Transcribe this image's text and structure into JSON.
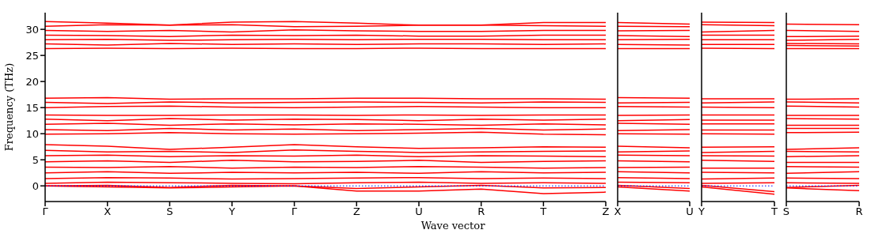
{
  "chart_data": [
    {
      "type": "line",
      "ylabel": "Frequency (THz)",
      "xlabel": "Wave vector",
      "categories": [
        "Γ",
        "X",
        "S",
        "Y",
        "Γ",
        "Z",
        "U",
        "R",
        "T",
        "Z"
      ],
      "ylim": [
        -3,
        33.2
      ],
      "yticks": [
        0,
        5,
        10,
        15,
        20,
        25,
        30
      ],
      "ref_lines": [
        {
          "axis": "y",
          "value": 0,
          "color": "#0000ff",
          "line_style": "dotted"
        }
      ],
      "series": [
        {
          "color": "#ff0000",
          "values": [
            31.5,
            31.2,
            30.8,
            31.4,
            31.5,
            31.2,
            30.8,
            30.8,
            31.3,
            31.3
          ]
        },
        {
          "color": "#ff0000",
          "values": [
            30.6,
            30.9,
            30.8,
            30.9,
            30.5,
            30.6,
            30.8,
            30.8,
            30.7,
            30.6
          ]
        },
        {
          "color": "#ff0000",
          "values": [
            29.8,
            29.6,
            29.8,
            29.5,
            29.9,
            29.7,
            29.6,
            29.6,
            29.8,
            29.8
          ]
        },
        {
          "color": "#ff0000",
          "values": [
            28.9,
            28.8,
            28.6,
            28.9,
            28.8,
            28.9,
            28.7,
            28.7,
            28.9,
            28.9
          ]
        },
        {
          "color": "#ff0000",
          "values": [
            28.0,
            28.1,
            27.9,
            28.0,
            28.1,
            28.0,
            28.1,
            28.1,
            28.0,
            28.0
          ]
        },
        {
          "color": "#ff0000",
          "values": [
            27.2,
            27.0,
            27.3,
            27.1,
            27.2,
            27.1,
            27.2,
            27.2,
            27.1,
            27.2
          ]
        },
        {
          "color": "#ff0000",
          "values": [
            26.3,
            26.4,
            26.3,
            26.4,
            26.3,
            26.3,
            26.4,
            26.3,
            26.3,
            26.3
          ]
        },
        {
          "color": "#ff0000",
          "values": [
            16.8,
            16.9,
            16.6,
            16.7,
            16.7,
            16.8,
            16.8,
            16.7,
            16.7,
            16.6
          ]
        },
        {
          "color": "#ff0000",
          "values": [
            16.0,
            15.8,
            16.1,
            15.9,
            16.0,
            16.1,
            16.0,
            15.9,
            16.1,
            16.0
          ]
        },
        {
          "color": "#ff0000",
          "values": [
            15.0,
            15.2,
            15.3,
            15.1,
            15.0,
            15.1,
            15.2,
            15.1,
            15.0,
            15.0
          ]
        },
        {
          "color": "#ff0000",
          "values": [
            13.6,
            13.5,
            13.5,
            13.6,
            13.6,
            13.5,
            13.6,
            13.5,
            13.6,
            13.6
          ]
        },
        {
          "color": "#ff0000",
          "values": [
            12.8,
            12.5,
            12.9,
            12.6,
            12.8,
            12.7,
            12.5,
            12.8,
            12.6,
            12.8
          ]
        },
        {
          "color": "#ff0000",
          "values": [
            11.8,
            12.0,
            11.6,
            11.9,
            11.7,
            11.9,
            11.8,
            11.6,
            11.9,
            11.7
          ]
        },
        {
          "color": "#ff0000",
          "values": [
            10.8,
            10.6,
            11.0,
            10.7,
            10.9,
            10.6,
            10.8,
            11.0,
            10.7,
            10.9
          ]
        },
        {
          "color": "#ff0000",
          "values": [
            9.9,
            10.0,
            10.2,
            10.0,
            9.9,
            10.0,
            10.1,
            10.3,
            9.9,
            9.8
          ]
        },
        {
          "color": "#ff0000",
          "values": [
            7.9,
            7.6,
            7.0,
            7.4,
            7.9,
            7.5,
            7.2,
            7.3,
            7.5,
            7.4
          ]
        },
        {
          "color": "#ff0000",
          "values": [
            6.8,
            6.5,
            6.6,
            6.4,
            6.9,
            6.6,
            6.4,
            6.5,
            6.6,
            6.7
          ]
        },
        {
          "color": "#ff0000",
          "values": [
            5.8,
            5.9,
            5.6,
            5.8,
            5.7,
            5.9,
            5.6,
            5.8,
            5.7,
            5.6
          ]
        },
        {
          "color": "#ff0000",
          "values": [
            4.6,
            4.8,
            4.5,
            4.9,
            4.6,
            4.7,
            4.9,
            4.5,
            4.7,
            4.8
          ]
        },
        {
          "color": "#ff0000",
          "values": [
            3.6,
            3.5,
            3.7,
            3.4,
            3.6,
            3.5,
            3.7,
            3.6,
            3.4,
            3.5
          ]
        },
        {
          "color": "#ff0000",
          "values": [
            2.5,
            2.7,
            2.4,
            2.6,
            2.5,
            2.6,
            2.4,
            2.7,
            2.5,
            2.6
          ]
        },
        {
          "color": "#ff0000",
          "values": [
            1.4,
            1.6,
            1.5,
            1.3,
            1.4,
            1.5,
            1.6,
            1.4,
            1.5,
            1.4
          ]
        },
        {
          "color": "#ff0000",
          "values": [
            0.5,
            0.7,
            0.6,
            0.5,
            0.4,
            0.6,
            0.7,
            0.5,
            0.6,
            0.5
          ]
        },
        {
          "color": "#ff0000",
          "values": [
            0,
            0.1,
            -0.3,
            0.1,
            0,
            -0.5,
            -0.2,
            0.1,
            -0.4,
            -0.3
          ]
        },
        {
          "color": "#ff0000",
          "values": [
            0,
            -0.2,
            -0.4,
            -0.2,
            0,
            -1.0,
            -1.0,
            -0.6,
            -1.5,
            -1.2
          ]
        }
      ]
    },
    {
      "type": "line",
      "tick_labels": "x",
      "categories": [
        "X",
        "U"
      ],
      "ylim": [
        -3,
        33.2
      ],
      "ref_lines": [
        {
          "axis": "y",
          "value": 0,
          "color": "#0000ff",
          "line_style": "dotted"
        }
      ],
      "series": [
        {
          "color": "#ff0000",
          "values": [
            31.3,
            31.0
          ]
        },
        {
          "color": "#ff0000",
          "values": [
            30.6,
            30.5
          ]
        },
        {
          "color": "#ff0000",
          "values": [
            29.7,
            29.8
          ]
        },
        {
          "color": "#ff0000",
          "values": [
            28.8,
            28.6
          ]
        },
        {
          "color": "#ff0000",
          "values": [
            28.0,
            28.1
          ]
        },
        {
          "color": "#ff0000",
          "values": [
            27.1,
            27.0
          ]
        },
        {
          "color": "#ff0000",
          "values": [
            26.3,
            26.3
          ]
        },
        {
          "color": "#ff0000",
          "values": [
            16.9,
            16.8
          ]
        },
        {
          "color": "#ff0000",
          "values": [
            15.9,
            16.0
          ]
        },
        {
          "color": "#ff0000",
          "values": [
            15.2,
            15.1
          ]
        },
        {
          "color": "#ff0000",
          "values": [
            13.5,
            13.6
          ]
        },
        {
          "color": "#ff0000",
          "values": [
            12.5,
            12.7
          ]
        },
        {
          "color": "#ff0000",
          "values": [
            12.0,
            11.8
          ]
        },
        {
          "color": "#ff0000",
          "values": [
            10.6,
            10.8
          ]
        },
        {
          "color": "#ff0000",
          "values": [
            10.0,
            9.9
          ]
        },
        {
          "color": "#ff0000",
          "values": [
            7.6,
            7.3
          ]
        },
        {
          "color": "#ff0000",
          "values": [
            6.5,
            6.7
          ]
        },
        {
          "color": "#ff0000",
          "values": [
            5.9,
            5.8
          ]
        },
        {
          "color": "#ff0000",
          "values": [
            4.8,
            4.6
          ]
        },
        {
          "color": "#ff0000",
          "values": [
            3.5,
            3.6
          ]
        },
        {
          "color": "#ff0000",
          "values": [
            2.7,
            2.5
          ]
        },
        {
          "color": "#ff0000",
          "values": [
            1.6,
            1.4
          ]
        },
        {
          "color": "#ff0000",
          "values": [
            0.7,
            0.6
          ]
        },
        {
          "color": "#ff0000",
          "values": [
            0.1,
            -0.5
          ]
        },
        {
          "color": "#ff0000",
          "values": [
            -0.2,
            -1.0
          ]
        }
      ]
    },
    {
      "type": "line",
      "tick_labels": "x",
      "categories": [
        "Y",
        "T"
      ],
      "ylim": [
        -3,
        33.2
      ],
      "ref_lines": [
        {
          "axis": "y",
          "value": 0,
          "color": "#0000ff",
          "line_style": "dotted"
        }
      ],
      "series": [
        {
          "color": "#ff0000",
          "values": [
            31.4,
            31.3
          ]
        },
        {
          "color": "#ff0000",
          "values": [
            30.9,
            30.7
          ]
        },
        {
          "color": "#ff0000",
          "values": [
            29.5,
            29.8
          ]
        },
        {
          "color": "#ff0000",
          "values": [
            28.9,
            28.9
          ]
        },
        {
          "color": "#ff0000",
          "values": [
            28.0,
            28.0
          ]
        },
        {
          "color": "#ff0000",
          "values": [
            27.1,
            27.1
          ]
        },
        {
          "color": "#ff0000",
          "values": [
            26.4,
            26.3
          ]
        },
        {
          "color": "#ff0000",
          "values": [
            16.7,
            16.7
          ]
        },
        {
          "color": "#ff0000",
          "values": [
            15.9,
            16.1
          ]
        },
        {
          "color": "#ff0000",
          "values": [
            15.1,
            15.0
          ]
        },
        {
          "color": "#ff0000",
          "values": [
            13.6,
            13.6
          ]
        },
        {
          "color": "#ff0000",
          "values": [
            12.6,
            12.6
          ]
        },
        {
          "color": "#ff0000",
          "values": [
            11.9,
            11.9
          ]
        },
        {
          "color": "#ff0000",
          "values": [
            10.7,
            10.7
          ]
        },
        {
          "color": "#ff0000",
          "values": [
            10.0,
            9.9
          ]
        },
        {
          "color": "#ff0000",
          "values": [
            7.4,
            7.5
          ]
        },
        {
          "color": "#ff0000",
          "values": [
            6.4,
            6.6
          ]
        },
        {
          "color": "#ff0000",
          "values": [
            5.8,
            5.7
          ]
        },
        {
          "color": "#ff0000",
          "values": [
            4.9,
            4.7
          ]
        },
        {
          "color": "#ff0000",
          "values": [
            3.4,
            3.4
          ]
        },
        {
          "color": "#ff0000",
          "values": [
            2.6,
            2.5
          ]
        },
        {
          "color": "#ff0000",
          "values": [
            1.3,
            1.5
          ]
        },
        {
          "color": "#ff0000",
          "values": [
            0.5,
            0.6
          ]
        },
        {
          "color": "#ff0000",
          "values": [
            0.1,
            -1.1
          ]
        },
        {
          "color": "#ff0000",
          "values": [
            -0.2,
            -1.6
          ]
        }
      ]
    },
    {
      "type": "line",
      "tick_labels": "x",
      "categories": [
        "S",
        "R"
      ],
      "ylim": [
        -3,
        33.2
      ],
      "ref_lines": [
        {
          "axis": "y",
          "value": 0,
          "color": "#0000ff",
          "line_style": "dotted"
        }
      ],
      "series": [
        {
          "color": "#ff0000",
          "values": [
            31.0,
            30.9
          ]
        },
        {
          "color": "#ff0000",
          "values": [
            29.8,
            29.6
          ]
        },
        {
          "color": "#ff0000",
          "values": [
            28.6,
            28.7
          ]
        },
        {
          "color": "#ff0000",
          "values": [
            27.9,
            28.1
          ]
        },
        {
          "color": "#ff0000",
          "values": [
            27.3,
            27.2
          ]
        },
        {
          "color": "#ff0000",
          "values": [
            26.9,
            26.8
          ]
        },
        {
          "color": "#ff0000",
          "values": [
            26.3,
            26.3
          ]
        },
        {
          "color": "#ff0000",
          "values": [
            16.6,
            16.7
          ]
        },
        {
          "color": "#ff0000",
          "values": [
            16.1,
            15.9
          ]
        },
        {
          "color": "#ff0000",
          "values": [
            15.3,
            15.1
          ]
        },
        {
          "color": "#ff0000",
          "values": [
            13.5,
            13.5
          ]
        },
        {
          "color": "#ff0000",
          "values": [
            12.9,
            12.8
          ]
        },
        {
          "color": "#ff0000",
          "values": [
            11.6,
            11.6
          ]
        },
        {
          "color": "#ff0000",
          "values": [
            11.0,
            11.0
          ]
        },
        {
          "color": "#ff0000",
          "values": [
            10.2,
            10.3
          ]
        },
        {
          "color": "#ff0000",
          "values": [
            7.0,
            7.3
          ]
        },
        {
          "color": "#ff0000",
          "values": [
            6.6,
            6.5
          ]
        },
        {
          "color": "#ff0000",
          "values": [
            5.6,
            5.8
          ]
        },
        {
          "color": "#ff0000",
          "values": [
            4.5,
            4.5
          ]
        },
        {
          "color": "#ff0000",
          "values": [
            3.7,
            3.6
          ]
        },
        {
          "color": "#ff0000",
          "values": [
            2.4,
            2.7
          ]
        },
        {
          "color": "#ff0000",
          "values": [
            1.5,
            1.4
          ]
        },
        {
          "color": "#ff0000",
          "values": [
            0.6,
            0.5
          ]
        },
        {
          "color": "#ff0000",
          "values": [
            -0.3,
            0.1
          ]
        },
        {
          "color": "#ff0000",
          "values": [
            -0.4,
            -0.9
          ]
        }
      ]
    }
  ]
}
